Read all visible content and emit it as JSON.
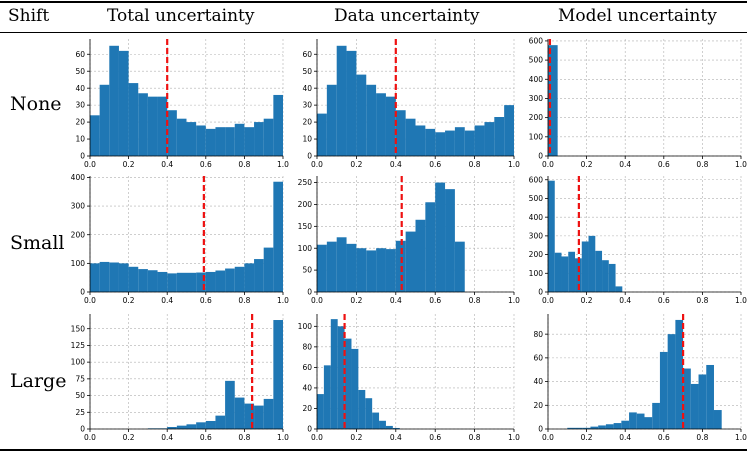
{
  "table": {
    "header": {
      "shift": "Shift",
      "total": "Total uncertainty",
      "data": "Data uncertainty",
      "model": "Model uncertainty"
    },
    "rows": [
      "None",
      "Small",
      "Large"
    ]
  },
  "colors": {
    "bar": "#1f77b4",
    "mean_line": "#ee1111",
    "grid": "#b0b0b0"
  },
  "chart_data": [
    {
      "type": "bar",
      "row": "None",
      "column": "Total uncertainty",
      "xlim": [
        0,
        1
      ],
      "ylim": [
        0,
        69
      ],
      "xticks": [
        "0.0",
        "0.2",
        "0.4",
        "0.6",
        "0.8",
        "1.0"
      ],
      "yticks": [
        "0",
        "10",
        "20",
        "30",
        "40",
        "50",
        "60"
      ],
      "bin_width": 0.05,
      "bin_starts": [
        0.0,
        0.05,
        0.1,
        0.15,
        0.2,
        0.25,
        0.3,
        0.35,
        0.4,
        0.45,
        0.5,
        0.55,
        0.6,
        0.65,
        0.7,
        0.75,
        0.8,
        0.85,
        0.9,
        0.95
      ],
      "values": [
        24,
        42,
        65,
        62,
        43,
        37,
        35,
        35,
        27,
        22,
        20,
        18,
        16,
        17,
        17,
        19,
        17,
        20,
        22,
        36
      ],
      "mean_line": 0.4,
      "grid": true
    },
    {
      "type": "bar",
      "row": "None",
      "column": "Data uncertainty",
      "xlim": [
        0,
        1
      ],
      "ylim": [
        0,
        69
      ],
      "xticks": [
        "0.0",
        "0.2",
        "0.4",
        "0.6",
        "0.8",
        "1.0"
      ],
      "yticks": [
        "0",
        "10",
        "20",
        "30",
        "40",
        "50",
        "60"
      ],
      "bin_width": 0.05,
      "bin_starts": [
        0.0,
        0.05,
        0.1,
        0.15,
        0.2,
        0.25,
        0.3,
        0.35,
        0.4,
        0.45,
        0.5,
        0.55,
        0.6,
        0.65,
        0.7,
        0.75,
        0.8,
        0.85,
        0.9,
        0.95
      ],
      "values": [
        25,
        42,
        65,
        62,
        48,
        42,
        37,
        35,
        27,
        22,
        18,
        16,
        14,
        15,
        17,
        15,
        18,
        20,
        23,
        30
      ],
      "mean_line": 0.4,
      "grid": true
    },
    {
      "type": "bar",
      "row": "None",
      "column": "Model uncertainty",
      "xlim": [
        0,
        1
      ],
      "ylim": [
        0,
        610
      ],
      "xticks": [
        "0.0",
        "0.2",
        "0.4",
        "0.6",
        "0.8",
        "1.0"
      ],
      "yticks": [
        "0",
        "100",
        "200",
        "300",
        "400",
        "500",
        "600"
      ],
      "bin_width": 0.05,
      "bin_starts": [
        0.0
      ],
      "values": [
        578
      ],
      "mean_line": 0.01,
      "grid": true
    },
    {
      "type": "bar",
      "row": "Small",
      "column": "Total uncertainty",
      "xlim": [
        0,
        1
      ],
      "ylim": [
        0,
        405
      ],
      "xticks": [
        "0.0",
        "0.2",
        "0.4",
        "0.6",
        "0.8",
        "1.0"
      ],
      "yticks": [
        "0",
        "100",
        "200",
        "300",
        "400"
      ],
      "bin_width": 0.05,
      "bin_starts": [
        0.0,
        0.05,
        0.1,
        0.15,
        0.2,
        0.25,
        0.3,
        0.35,
        0.4,
        0.45,
        0.5,
        0.55,
        0.6,
        0.65,
        0.7,
        0.75,
        0.8,
        0.85,
        0.9,
        0.95
      ],
      "values": [
        100,
        105,
        103,
        100,
        88,
        80,
        76,
        70,
        65,
        67,
        67,
        68,
        70,
        75,
        82,
        88,
        100,
        115,
        155,
        385
      ],
      "mean_line": 0.59,
      "grid": true
    },
    {
      "type": "bar",
      "row": "Small",
      "column": "Data uncertainty",
      "xlim": [
        0,
        1
      ],
      "ylim": [
        0,
        265
      ],
      "xticks": [
        "0.0",
        "0.2",
        "0.4",
        "0.6",
        "0.8",
        "1.0"
      ],
      "yticks": [
        "0",
        "50",
        "100",
        "150",
        "200",
        "250"
      ],
      "bin_width": 0.05,
      "bin_starts": [
        0.0,
        0.05,
        0.1,
        0.15,
        0.2,
        0.25,
        0.3,
        0.35,
        0.4,
        0.45,
        0.5,
        0.55,
        0.6,
        0.65,
        0.7
      ],
      "values": [
        108,
        115,
        125,
        110,
        100,
        95,
        100,
        98,
        117,
        138,
        165,
        205,
        250,
        235,
        115
      ],
      "mean_line": 0.43,
      "grid": true
    },
    {
      "type": "bar",
      "row": "Small",
      "column": "Model uncertainty",
      "xlim": [
        0,
        1
      ],
      "ylim": [
        0,
        620
      ],
      "xticks": [
        "0.0",
        "0.2",
        "0.4",
        "0.6",
        "0.8",
        "1.0"
      ],
      "yticks": [
        "0",
        "100",
        "200",
        "300",
        "400",
        "500",
        "600"
      ],
      "bin_width": 0.035,
      "bin_starts": [
        0.0,
        0.035,
        0.07,
        0.105,
        0.14,
        0.175,
        0.21,
        0.245,
        0.28,
        0.315,
        0.35,
        0.385
      ],
      "values": [
        595,
        210,
        190,
        215,
        180,
        270,
        300,
        220,
        170,
        150,
        30,
        0
      ],
      "mean_line": 0.16,
      "grid": true
    },
    {
      "type": "bar",
      "row": "Large",
      "column": "Total uncertainty",
      "xlim": [
        0,
        1
      ],
      "ylim": [
        0,
        172
      ],
      "xticks": [
        "0.0",
        "0.2",
        "0.4",
        "0.6",
        "0.8",
        "1.0"
      ],
      "yticks": [
        "0",
        "25",
        "50",
        "75",
        "100",
        "125",
        "150"
      ],
      "bin_width": 0.05,
      "bin_starts": [
        0.3,
        0.35,
        0.4,
        0.45,
        0.5,
        0.55,
        0.6,
        0.65,
        0.7,
        0.75,
        0.8,
        0.85,
        0.9,
        0.95
      ],
      "values": [
        1,
        1,
        3,
        5,
        7,
        10,
        12,
        20,
        72,
        47,
        38,
        35,
        45,
        163
      ],
      "mean_line": 0.84,
      "grid": true
    },
    {
      "type": "bar",
      "row": "Large",
      "column": "Data uncertainty",
      "xlim": [
        0,
        1
      ],
      "ylim": [
        0,
        112
      ],
      "xticks": [
        "0.0",
        "0.2",
        "0.4",
        "0.6",
        "0.8",
        "1.0"
      ],
      "yticks": [
        "0",
        "20",
        "40",
        "60",
        "80",
        "100"
      ],
      "bin_width": 0.035,
      "bin_starts": [
        0.0,
        0.035,
        0.07,
        0.105,
        0.14,
        0.175,
        0.21,
        0.245,
        0.28,
        0.315,
        0.35,
        0.385
      ],
      "values": [
        34,
        62,
        107,
        100,
        88,
        78,
        38,
        30,
        16,
        8,
        3,
        1
      ],
      "mean_line": 0.14,
      "grid": true
    },
    {
      "type": "bar",
      "row": "Large",
      "column": "Model uncertainty",
      "xlim": [
        0,
        1
      ],
      "ylim": [
        0,
        97
      ],
      "xticks": [
        "0.0",
        "0.2",
        "0.4",
        "0.6",
        "0.8",
        "1.0"
      ],
      "yticks": [
        "0",
        "20",
        "40",
        "60",
        "80"
      ],
      "bin_width": 0.04,
      "bin_starts": [
        0.1,
        0.14,
        0.18,
        0.22,
        0.26,
        0.3,
        0.34,
        0.38,
        0.42,
        0.46,
        0.5,
        0.54,
        0.58,
        0.62,
        0.66,
        0.7,
        0.74,
        0.78,
        0.82,
        0.86,
        0.9
      ],
      "values": [
        1,
        1,
        1,
        2,
        3,
        4,
        5,
        7,
        14,
        13,
        10,
        22,
        65,
        80,
        92,
        51,
        38,
        46,
        54,
        16,
        0
      ],
      "mean_line": 0.7,
      "grid": true
    }
  ]
}
